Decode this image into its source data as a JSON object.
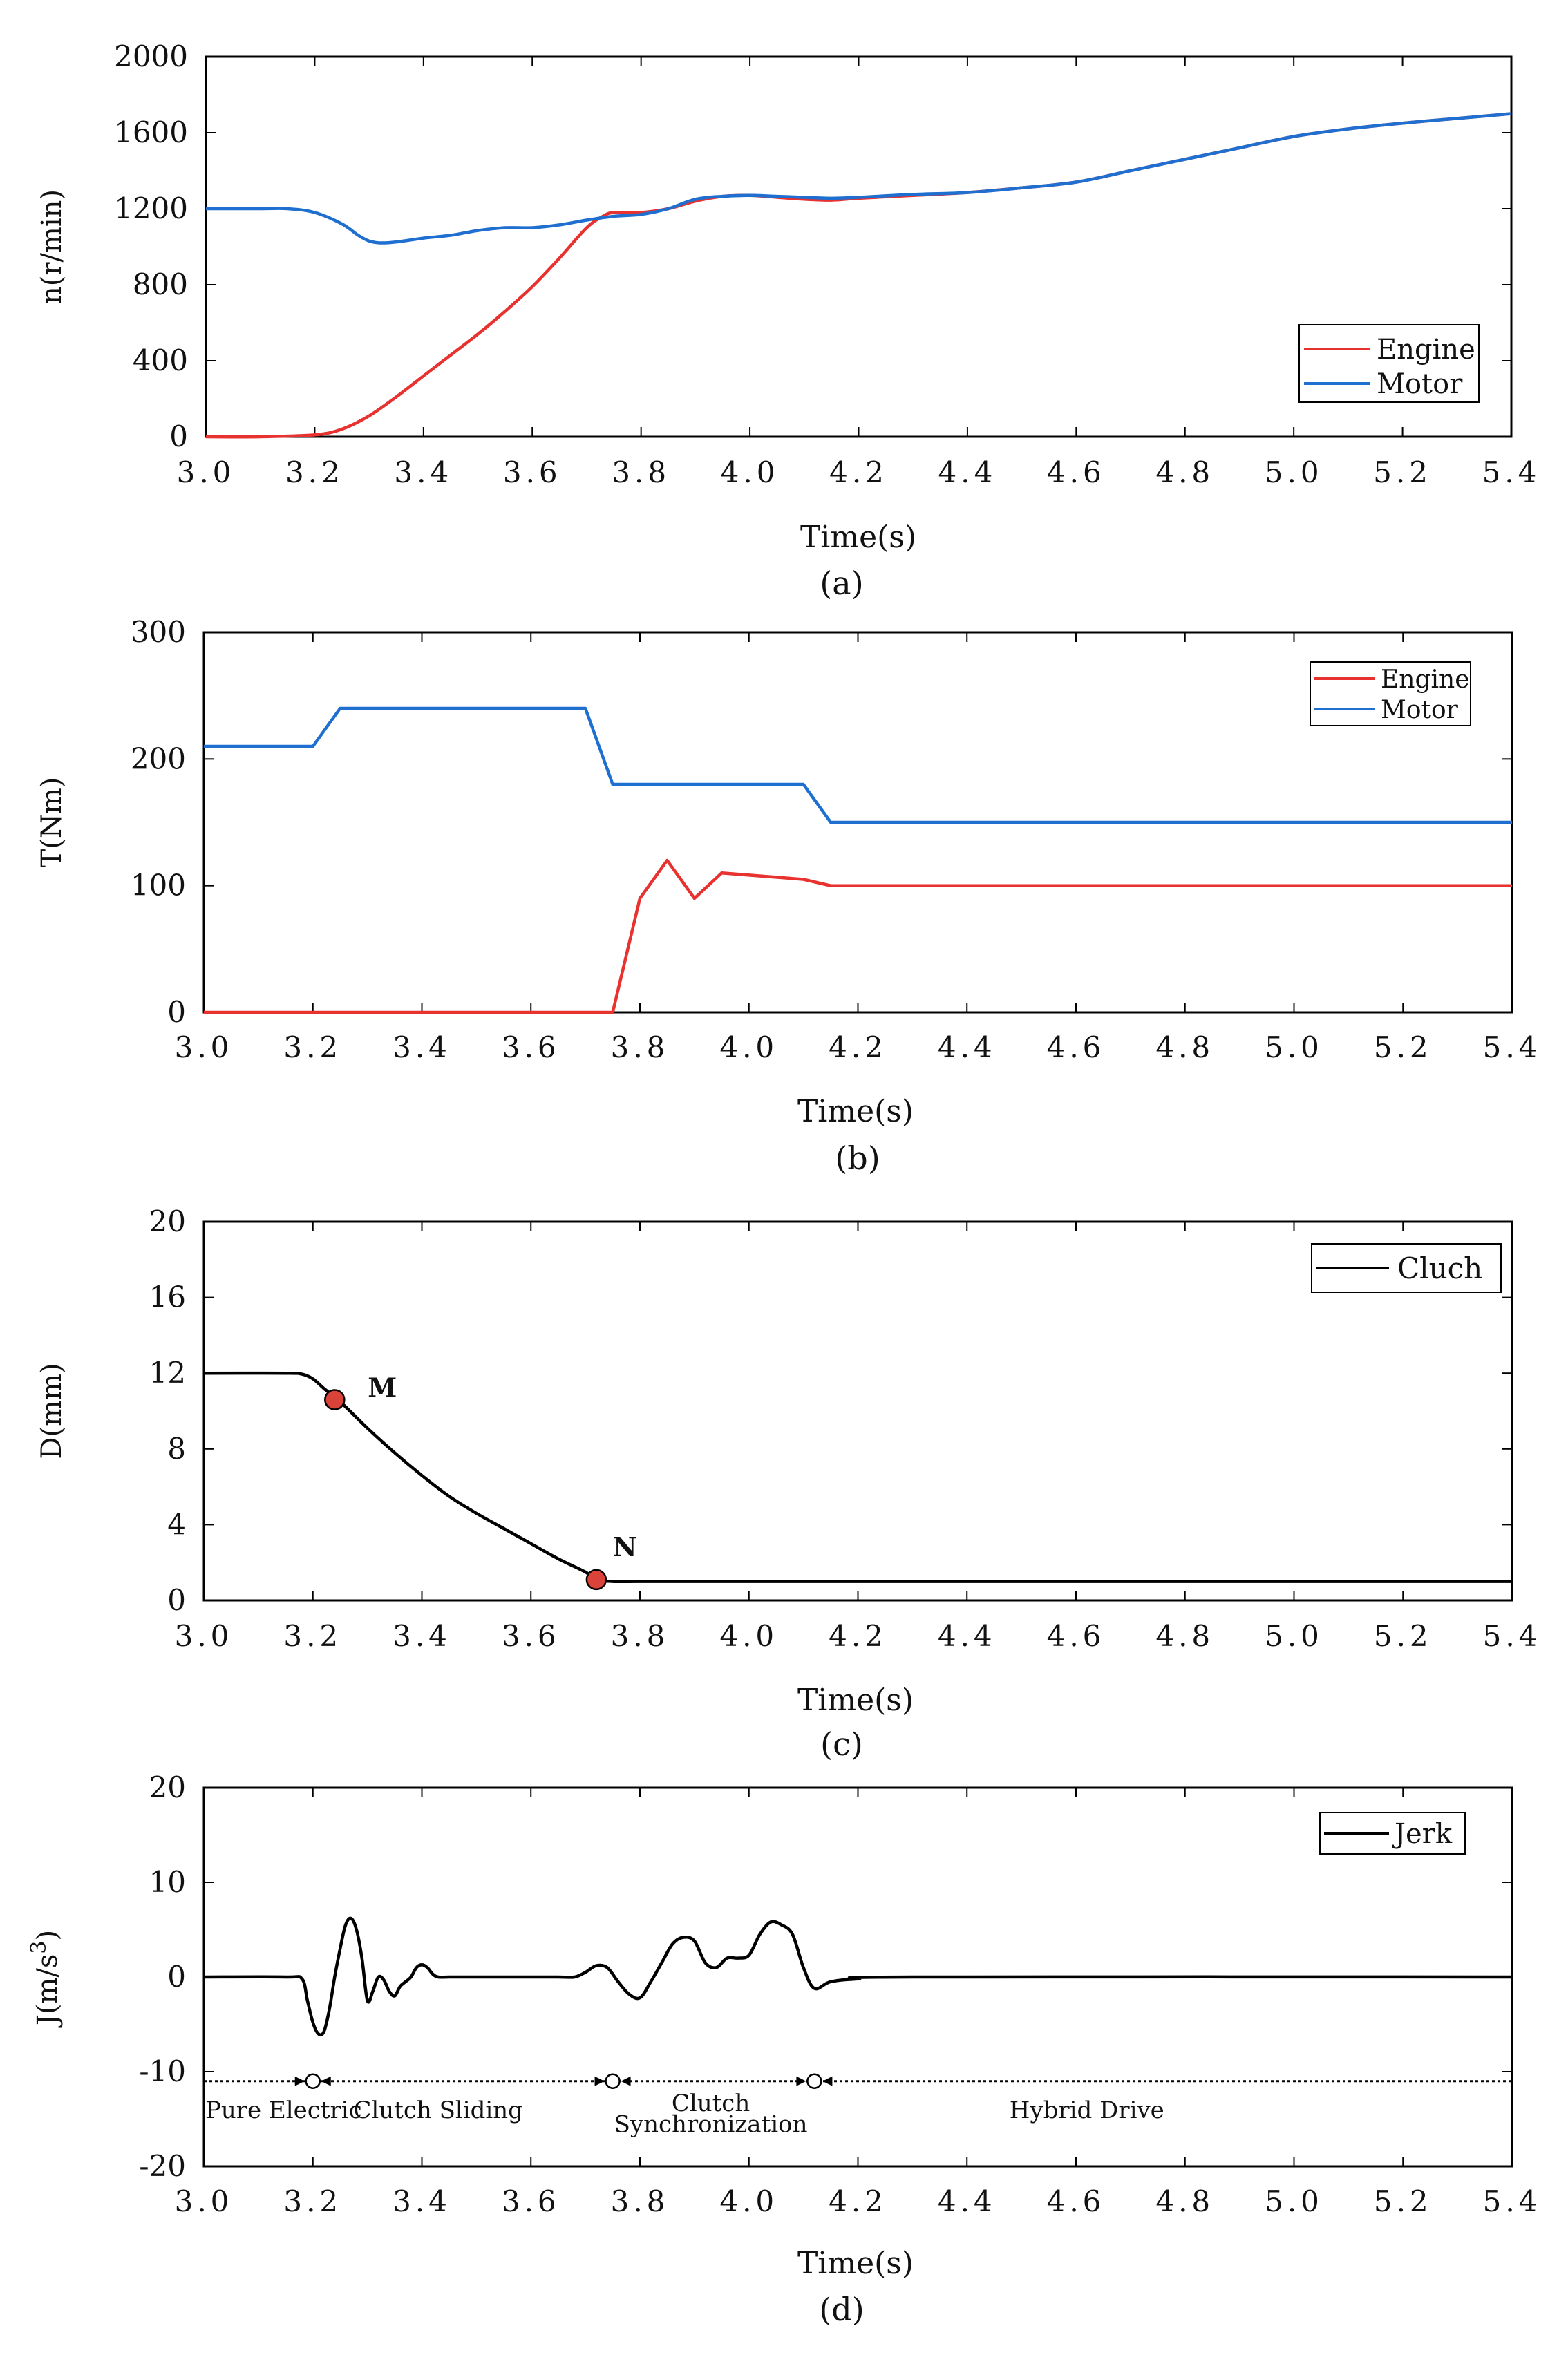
{
  "figure": {
    "x_tick_labels": [
      "3.0",
      "3.2",
      "3.4",
      "3.6",
      "3.8",
      "4.0",
      "4.2",
      "4.4",
      "4.6",
      "4.8",
      "5.0",
      "5.2",
      "5.4"
    ],
    "xlabel": "Time(s)"
  },
  "colors": {
    "engine": "#e8322f",
    "motor": "#1f6fd1",
    "black": "#000000",
    "marker": "#d9433a"
  },
  "chart_data": [
    {
      "type": "line",
      "caption": "(a)",
      "title": "",
      "xlabel": "Time(s)",
      "ylabel": "n(r/min)",
      "xlim": [
        3.0,
        5.4
      ],
      "ylim": [
        0,
        2000
      ],
      "y_ticks": [
        0,
        400,
        800,
        1200,
        1600,
        2000
      ],
      "legend_position": "bottom-right",
      "series": [
        {
          "name": "Engine",
          "color": "#e8322f",
          "x": [
            3.0,
            3.1,
            3.2,
            3.25,
            3.3,
            3.35,
            3.4,
            3.45,
            3.5,
            3.55,
            3.6,
            3.65,
            3.7,
            3.73,
            3.75,
            3.8,
            3.85,
            3.9,
            3.95,
            4.0,
            4.05,
            4.1,
            4.15,
            4.2,
            4.3,
            4.4,
            4.5,
            4.6,
            4.7,
            4.8,
            4.9,
            5.0,
            5.1,
            5.2,
            5.3,
            5.4
          ],
          "y": [
            0,
            0,
            10,
            40,
            110,
            210,
            320,
            430,
            540,
            660,
            790,
            940,
            1100,
            1160,
            1180,
            1180,
            1200,
            1240,
            1265,
            1270,
            1260,
            1250,
            1245,
            1255,
            1270,
            1285,
            1310,
            1340,
            1400,
            1460,
            1520,
            1580,
            1620,
            1650,
            1675,
            1700
          ]
        },
        {
          "name": "Motor",
          "color": "#1f6fd1",
          "x": [
            3.0,
            3.1,
            3.15,
            3.2,
            3.25,
            3.28,
            3.3,
            3.32,
            3.35,
            3.4,
            3.45,
            3.5,
            3.55,
            3.6,
            3.65,
            3.7,
            3.75,
            3.8,
            3.85,
            3.9,
            3.95,
            4.0,
            4.05,
            4.1,
            4.15,
            4.2,
            4.3,
            4.4,
            4.5,
            4.6,
            4.7,
            4.8,
            4.9,
            5.0,
            5.1,
            5.2,
            5.3,
            5.4
          ],
          "y": [
            1200,
            1200,
            1200,
            1180,
            1120,
            1060,
            1030,
            1020,
            1025,
            1045,
            1060,
            1085,
            1100,
            1100,
            1115,
            1140,
            1160,
            1170,
            1200,
            1250,
            1265,
            1270,
            1265,
            1260,
            1255,
            1260,
            1275,
            1285,
            1310,
            1340,
            1400,
            1460,
            1520,
            1580,
            1620,
            1650,
            1675,
            1700
          ]
        }
      ]
    },
    {
      "type": "line",
      "caption": "(b)",
      "title": "",
      "xlabel": "Time(s)",
      "ylabel": "T(Nm)",
      "xlim": [
        3.0,
        5.4
      ],
      "ylim": [
        0,
        300
      ],
      "y_ticks": [
        0,
        100,
        200,
        300
      ],
      "legend_position": "top-right",
      "series": [
        {
          "name": "Engine",
          "color": "#e8322f",
          "x": [
            3.0,
            3.75,
            3.8,
            3.85,
            3.9,
            3.95,
            4.1,
            4.15,
            5.4
          ],
          "y": [
            0,
            0,
            90,
            120,
            90,
            110,
            105,
            100,
            100
          ]
        },
        {
          "name": "Motor",
          "color": "#1f6fd1",
          "x": [
            3.0,
            3.2,
            3.25,
            3.7,
            3.75,
            4.1,
            4.15,
            5.4
          ],
          "y": [
            210,
            210,
            240,
            240,
            180,
            180,
            150,
            150
          ]
        }
      ]
    },
    {
      "type": "line",
      "caption": "(c)",
      "title": "",
      "xlabel": "Time(s)",
      "ylabel": "D(mm)",
      "xlim": [
        3.0,
        5.4
      ],
      "ylim": [
        0,
        20
      ],
      "y_ticks": [
        0,
        4,
        8,
        12,
        16,
        20
      ],
      "legend_position": "top-right",
      "series": [
        {
          "name": "Cluch",
          "color": "#000000",
          "x": [
            3.0,
            3.15,
            3.18,
            3.2,
            3.22,
            3.25,
            3.3,
            3.35,
            3.4,
            3.45,
            3.5,
            3.55,
            3.6,
            3.65,
            3.7,
            3.72,
            3.75,
            3.8,
            4.0,
            5.4
          ],
          "y": [
            12,
            12,
            11.95,
            11.7,
            11.2,
            10.5,
            9.1,
            7.8,
            6.6,
            5.5,
            4.6,
            3.8,
            3.0,
            2.2,
            1.5,
            1.1,
            1.0,
            1.0,
            1.0,
            1.0
          ]
        }
      ],
      "points": [
        {
          "label": "M",
          "x": 3.24,
          "y": 10.6
        },
        {
          "label": "N",
          "x": 3.72,
          "y": 1.1
        }
      ]
    },
    {
      "type": "line",
      "caption": "(d)",
      "title": "",
      "xlabel": "Time(s)",
      "ylabel": "J(m/s",
      "ylabel_superscript": "3",
      "ylabel_suffix": ")",
      "xlim": [
        3.0,
        5.4
      ],
      "ylim": [
        -20,
        20
      ],
      "y_ticks": [
        -20,
        -10,
        0,
        10,
        20
      ],
      "legend_position": "top-right",
      "series": [
        {
          "name": "Jerk",
          "color": "#000000",
          "x": [
            3.0,
            3.15,
            3.18,
            3.19,
            3.2,
            3.21,
            3.22,
            3.23,
            3.24,
            3.25,
            3.26,
            3.27,
            3.28,
            3.29,
            3.3,
            3.31,
            3.32,
            3.33,
            3.34,
            3.35,
            3.36,
            3.37,
            3.38,
            3.39,
            3.4,
            3.41,
            3.42,
            3.43,
            3.45,
            3.5,
            3.6,
            3.65,
            3.68,
            3.7,
            3.72,
            3.74,
            3.76,
            3.78,
            3.8,
            3.82,
            3.84,
            3.86,
            3.88,
            3.9,
            3.92,
            3.94,
            3.96,
            3.98,
            4.0,
            4.02,
            4.04,
            4.06,
            4.08,
            4.1,
            4.12,
            4.15,
            4.2,
            4.3,
            5.4
          ],
          "y": [
            0,
            0,
            -0.2,
            -2.5,
            -4.8,
            -6.0,
            -5.8,
            -3.5,
            0,
            3,
            5.5,
            6.2,
            5,
            2,
            -2.5,
            -1.5,
            0,
            -0.3,
            -1.5,
            -2,
            -1,
            -0.5,
            0,
            1,
            1.3,
            1,
            0.3,
            0,
            0,
            0,
            0,
            0,
            0,
            0.5,
            1.2,
            1,
            -0.5,
            -1.8,
            -2.2,
            -0.5,
            1.5,
            3.5,
            4.2,
            3.8,
            1.5,
            1,
            2,
            2,
            2.3,
            4.5,
            5.8,
            5.5,
            4.5,
            1,
            -1.2,
            -0.5,
            -0.2,
            0,
            0
          ]
        }
      ],
      "phase_line_y": -11,
      "phase_markers_x": [
        3.2,
        3.75,
        4.12
      ],
      "phases": [
        {
          "label": "Pure Electric",
          "x": 3.05,
          "y": -14
        },
        {
          "label": "Clutch Sliding",
          "x": 3.43,
          "y": -14
        },
        {
          "label": "Clutch",
          "x": 3.93,
          "y": -13.3
        },
        {
          "label": "Synchronization",
          "x": 3.93,
          "y": -15.5
        },
        {
          "label": "Hybrid Drive",
          "x": 4.62,
          "y": -14
        }
      ]
    }
  ]
}
